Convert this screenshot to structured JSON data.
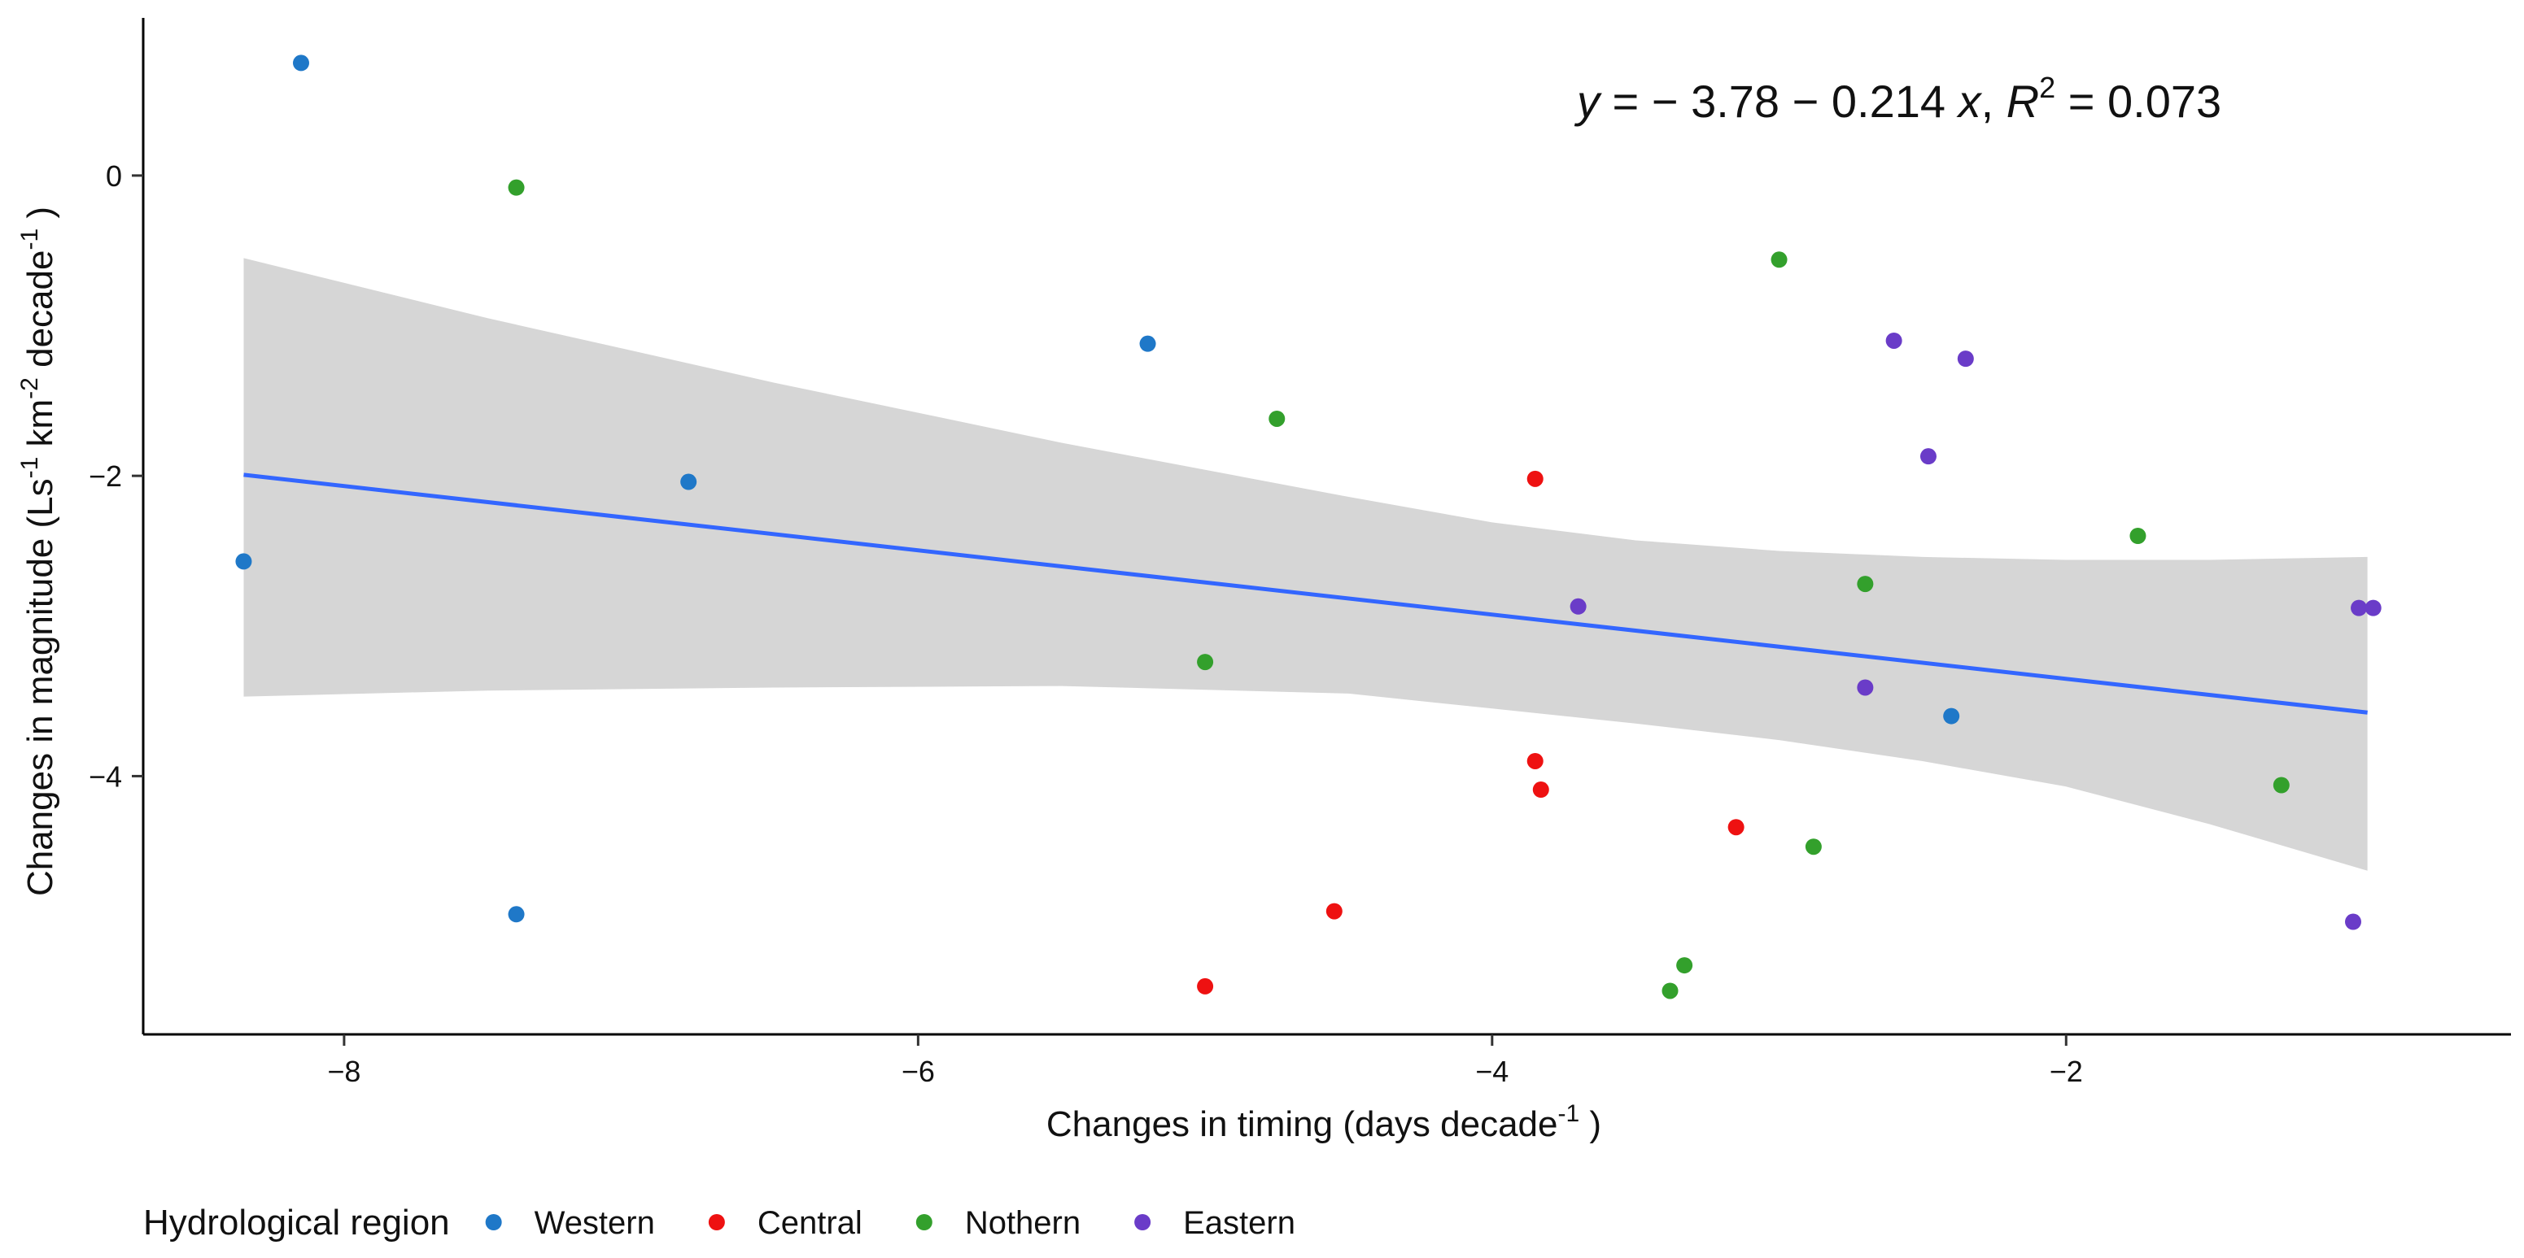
{
  "chart_data": {
    "type": "scatter",
    "xlabel": "Changes in timing (days decade",
    "xlabel_sup": "-1",
    "xlabel_tail": " )",
    "ylabel": "Changes in magnitude (Ls",
    "ylabel_sup1": "-1",
    "ylabel_mid1": " km",
    "ylabel_sup2": "-2",
    "ylabel_mid2": " decade",
    "ylabel_sup3": "-1",
    "ylabel_tail": " )",
    "xlim": [
      -8.7,
      -0.45
    ],
    "ylim": [
      -5.72,
      1.05
    ],
    "xticks": [
      -8,
      -6,
      -4,
      -2
    ],
    "xtick_labels": [
      "−8",
      "−6",
      "−4",
      "−2"
    ],
    "yticks": [
      0,
      -2,
      -4
    ],
    "ytick_labels": [
      "0",
      "−2",
      "−4"
    ],
    "grid": false,
    "equation": {
      "y": "y",
      "rhs": " = − 3.78 − 0.214 ",
      "x": "x",
      "comma": ", ",
      "r": "R",
      "r_sup": "2",
      "r_val": " = 0.073"
    },
    "fit": {
      "intercept": -3.78,
      "slope": -0.214,
      "x_range": [
        -8.35,
        -0.95
      ],
      "line_color": "#3366FF",
      "ci_color": "#D6D6D6",
      "ci_upper": [
        {
          "x": -8.35,
          "y": -0.55
        },
        {
          "x": -7.5,
          "y": -0.95
        },
        {
          "x": -6.5,
          "y": -1.38
        },
        {
          "x": -5.5,
          "y": -1.78
        },
        {
          "x": -4.5,
          "y": -2.14
        },
        {
          "x": -4.0,
          "y": -2.31
        },
        {
          "x": -3.5,
          "y": -2.43
        },
        {
          "x": -3.0,
          "y": -2.5
        },
        {
          "x": -2.5,
          "y": -2.54
        },
        {
          "x": -2.0,
          "y": -2.56
        },
        {
          "x": -1.5,
          "y": -2.56
        },
        {
          "x": -0.95,
          "y": -2.54
        }
      ],
      "ci_lower": [
        {
          "x": -8.35,
          "y": -3.47
        },
        {
          "x": -7.5,
          "y": -3.43
        },
        {
          "x": -6.5,
          "y": -3.41
        },
        {
          "x": -5.5,
          "y": -3.4
        },
        {
          "x": -4.5,
          "y": -3.45
        },
        {
          "x": -4.0,
          "y": -3.55
        },
        {
          "x": -3.5,
          "y": -3.65
        },
        {
          "x": -3.0,
          "y": -3.76
        },
        {
          "x": -2.5,
          "y": -3.9
        },
        {
          "x": -2.0,
          "y": -4.07
        },
        {
          "x": -1.5,
          "y": -4.32
        },
        {
          "x": -0.95,
          "y": -4.63
        }
      ]
    },
    "legend": {
      "title": "Hydrological region",
      "position": "bottom"
    },
    "series": [
      {
        "name": "Western",
        "color": "#1F78C8",
        "points": [
          {
            "x": -8.15,
            "y": 0.75
          },
          {
            "x": -8.35,
            "y": -2.57
          },
          {
            "x": -7.4,
            "y": -4.92
          },
          {
            "x": -5.2,
            "y": -1.12
          },
          {
            "x": -6.8,
            "y": -2.04
          },
          {
            "x": -2.4,
            "y": -3.6
          }
        ]
      },
      {
        "name": "Central",
        "color": "#EE1111",
        "points": [
          {
            "x": -3.85,
            "y": -2.02
          },
          {
            "x": -3.85,
            "y": -3.9
          },
          {
            "x": -3.83,
            "y": -4.09
          },
          {
            "x": -3.15,
            "y": -4.34
          },
          {
            "x": -4.55,
            "y": -4.9
          },
          {
            "x": -5.0,
            "y": -5.4
          }
        ]
      },
      {
        "name": "Nothern",
        "color": "#33A02C",
        "points": [
          {
            "x": -7.4,
            "y": -0.08
          },
          {
            "x": -4.75,
            "y": -1.62
          },
          {
            "x": -5.0,
            "y": -3.24
          },
          {
            "x": -3.0,
            "y": -0.56
          },
          {
            "x": -2.7,
            "y": -2.72
          },
          {
            "x": -1.75,
            "y": -2.4
          },
          {
            "x": -1.25,
            "y": -4.06
          },
          {
            "x": -2.88,
            "y": -4.47
          },
          {
            "x": -3.33,
            "y": -5.26
          },
          {
            "x": -3.38,
            "y": -5.43
          }
        ]
      },
      {
        "name": "Eastern",
        "color": "#6A3CC8",
        "points": [
          {
            "x": -2.6,
            "y": -1.1
          },
          {
            "x": -2.35,
            "y": -1.22
          },
          {
            "x": -2.48,
            "y": -1.87
          },
          {
            "x": -3.7,
            "y": -2.87
          },
          {
            "x": -2.7,
            "y": -3.41
          },
          {
            "x": -0.98,
            "y": -2.88
          },
          {
            "x": -0.93,
            "y": -2.88
          },
          {
            "x": -1.0,
            "y": -4.97
          }
        ]
      }
    ]
  }
}
